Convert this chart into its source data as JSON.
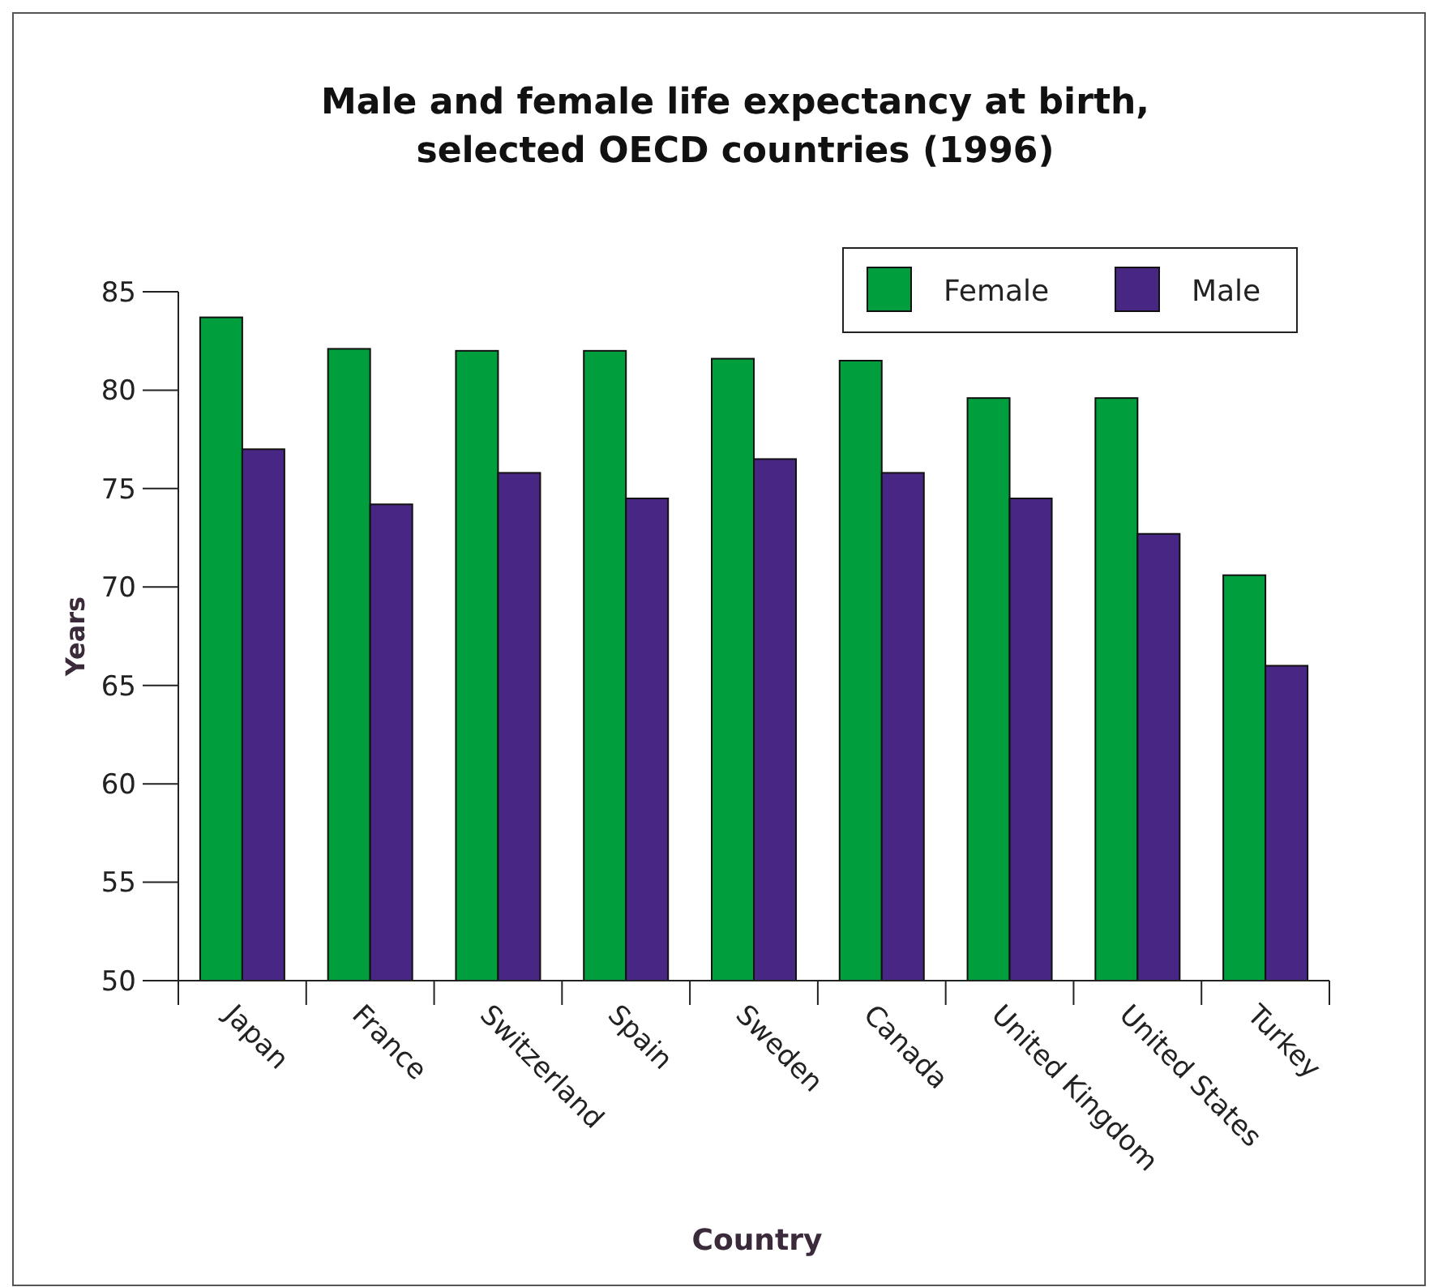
{
  "chart_data": {
    "type": "bar",
    "title": "Male and female life expectancy at birth,\nselected OECD countries (1996)",
    "xlabel": "Country",
    "ylabel": "Years",
    "categories": [
      "Japan",
      "France",
      "Switzerland",
      "Spain",
      "Sweden",
      "Canada",
      "United Kingdom",
      "United States",
      "Turkey"
    ],
    "series": [
      {
        "name": "Female",
        "color": "#009e3d",
        "values": [
          83.7,
          82.1,
          82.0,
          82.0,
          81.6,
          81.5,
          79.6,
          79.6,
          70.6
        ]
      },
      {
        "name": "Male",
        "color": "#482683",
        "values": [
          77.0,
          74.2,
          75.8,
          74.5,
          76.5,
          75.8,
          74.5,
          72.7,
          66.0
        ]
      }
    ],
    "ylim": [
      50,
      85
    ],
    "yticks": [
      50,
      55,
      60,
      65,
      70,
      75,
      80,
      85
    ],
    "grid": false,
    "legend": "top right"
  }
}
